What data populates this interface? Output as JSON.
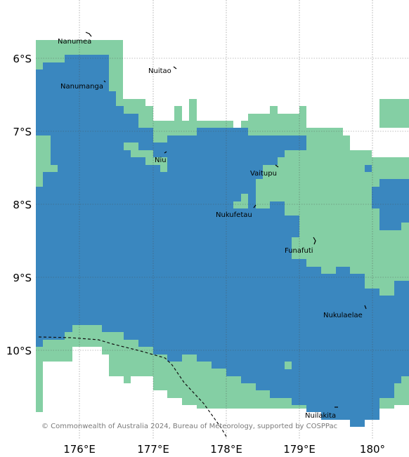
{
  "map": {
    "colors": {
      "deep_water": "#3a87bf",
      "shallow": "#84cfa4",
      "land_background": "#ffffff",
      "gridline": "#4a4a4a"
    },
    "x_ticks": [
      "176°E",
      "177°E",
      "178°E",
      "179°E",
      "180°"
    ],
    "y_ticks": [
      "6°S",
      "7°S",
      "8°S",
      "9°S",
      "10°S"
    ],
    "islands": [
      {
        "name": "Nanumea"
      },
      {
        "name": "Nuitao"
      },
      {
        "name": "Nanumanga"
      },
      {
        "name": "Niu"
      },
      {
        "name": "Vaitupu"
      },
      {
        "name": "Nukufetau"
      },
      {
        "name": "Funafuti"
      },
      {
        "name": "Nukulaelae"
      },
      {
        "name": "Nuilakita"
      }
    ],
    "credit": "© Commonwealth of Australia 2024, Bureau of Meteorology, supported by COSPPac"
  }
}
